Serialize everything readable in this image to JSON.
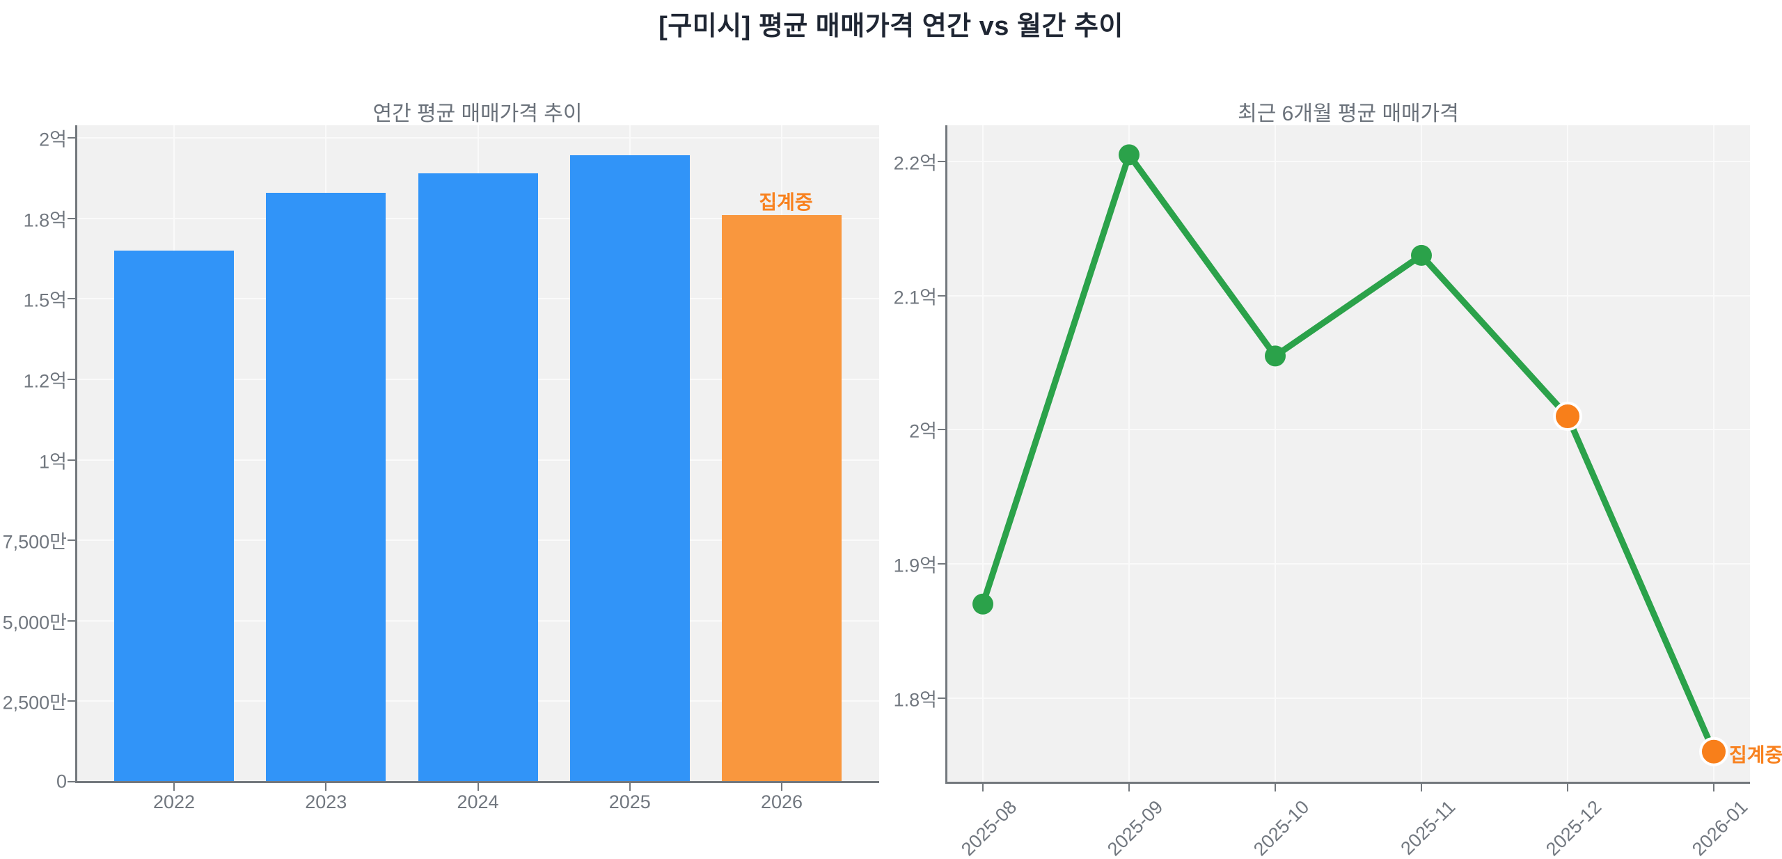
{
  "main_title": "[구미시] 평균 매매가격 연간 vs 월간 추이",
  "annotation_label": "집계중",
  "colors": {
    "bar_blue": "#3194F8",
    "bar_orange": "#F9973E",
    "line_green": "#2BA24A",
    "point_green": "#2BA24A",
    "point_orange": "#F87F1A",
    "annotation_orange": "#F8811E",
    "plot_background": "#f1f1f1",
    "grid_line": "#fafafa",
    "axis_line": "#73787d",
    "tick_label": "#71777f",
    "chart_title": "#6a717a",
    "main_title": "#1f2633"
  },
  "chart_data": [
    {
      "type": "bar",
      "title": "연간 평균 매매가격 추이",
      "categories": [
        "2022",
        "2023",
        "2024",
        "2025",
        "2026"
      ],
      "values": [
        1.65,
        1.83,
        1.89,
        1.945,
        1.76
      ],
      "value_unit": "억",
      "bar_colors": [
        "#3194F8",
        "#3194F8",
        "#3194F8",
        "#3194F8",
        "#F9973E"
      ],
      "annotations": [
        {
          "text": "집계중",
          "category": "2026",
          "color": "#F8811E",
          "position": "above-bar"
        }
      ],
      "ylim": [
        0,
        2.039
      ],
      "yticks": [
        {
          "value": 0,
          "label": "0"
        },
        {
          "value": 0.25,
          "label": "2,500만"
        },
        {
          "value": 0.5,
          "label": "5,000만"
        },
        {
          "value": 0.75,
          "label": "7,500만"
        },
        {
          "value": 1,
          "label": "1억"
        },
        {
          "value": 1.25,
          "label": "1.2억"
        },
        {
          "value": 1.5,
          "label": "1.5억"
        },
        {
          "value": 1.75,
          "label": "1.8억"
        },
        {
          "value": 2,
          "label": "2억"
        }
      ],
      "grid": true,
      "legend": "none"
    },
    {
      "type": "line",
      "title": "최근 6개월 평균 매매가격",
      "categories": [
        "2025-08",
        "2025-09",
        "2025-10",
        "2025-11",
        "2025-12",
        "2026-01"
      ],
      "values": [
        1.87,
        2.205,
        2.055,
        2.13,
        2.01,
        1.76
      ],
      "value_unit": "억",
      "line_color": "#2BA24A",
      "point_colors": [
        "#2BA24A",
        "#2BA24A",
        "#2BA24A",
        "#2BA24A",
        "#F87F1A",
        "#F87F1A"
      ],
      "annotations": [
        {
          "text": "집계중",
          "category": "2026-01",
          "color": "#F8811E",
          "position": "right-of-point"
        }
      ],
      "ylim": [
        1.737,
        2.227
      ],
      "yticks": [
        {
          "value": 2.2,
          "label": "2.2억"
        },
        {
          "value": 2.1,
          "label": "2.1억"
        },
        {
          "value": 2.0,
          "label": "2억"
        },
        {
          "value": 1.9,
          "label": "1.9억"
        },
        {
          "value": 1.8,
          "label": "1.8억"
        }
      ],
      "xtick_rotation": 45,
      "grid": true,
      "legend": "none"
    }
  ]
}
